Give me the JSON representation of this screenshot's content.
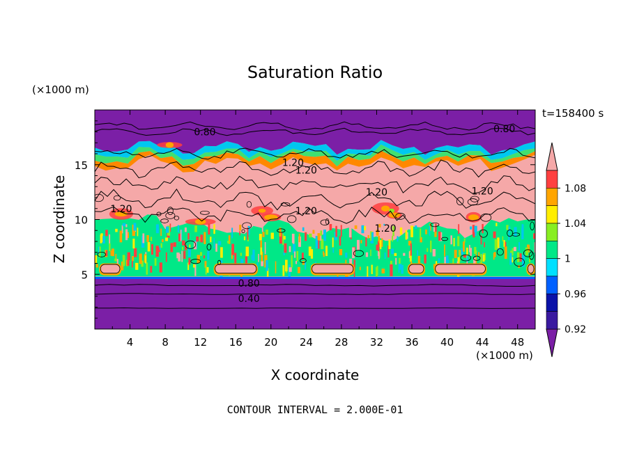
{
  "chart_data": {
    "type": "heatmap",
    "title": "Saturation Ratio",
    "xlabel": "X coordinate",
    "ylabel": "Z coordinate",
    "x_unit_label": "(×1000 m)",
    "y_unit_label": "(×1000 m)",
    "time_label": "t=158400 s",
    "footer": "CONTOUR INTERVAL = 2.000E-01",
    "xlim": [
      0,
      50
    ],
    "ylim": [
      0,
      20
    ],
    "x_ticks": [
      4,
      8,
      12,
      16,
      20,
      24,
      28,
      32,
      36,
      40,
      44,
      48
    ],
    "y_ticks": [
      5,
      10,
      15
    ],
    "colorbar": {
      "labels": [
        "1.08",
        "1.04",
        "1",
        "0.96",
        "0.92"
      ],
      "levels": [
        0.9,
        0.92,
        0.94,
        0.96,
        0.98,
        1.0,
        1.02,
        1.04,
        1.06,
        1.08,
        1.1
      ],
      "colors": [
        "#7b1fa6",
        "#3a1aa0",
        "#0a12a8",
        "#0060ff",
        "#00e0ff",
        "#00e887",
        "#88ee22",
        "#ffee00",
        "#ffa500",
        "#ff4040",
        "#f5a8a8"
      ]
    },
    "contour_labels": [
      {
        "text": "0.80",
        "x": 12.5,
        "z": 18.0
      },
      {
        "text": "0.80",
        "x": 46.5,
        "z": 18.3
      },
      {
        "text": "1.20",
        "x": 22.5,
        "z": 15.2
      },
      {
        "text": "1.20",
        "x": 24.0,
        "z": 14.5
      },
      {
        "text": "1.20",
        "x": 32.0,
        "z": 12.5
      },
      {
        "text": "1.20",
        "x": 44.0,
        "z": 12.6
      },
      {
        "text": "1.20",
        "x": 3.0,
        "z": 11.0
      },
      {
        "text": "1.20",
        "x": 24.0,
        "z": 10.8
      },
      {
        "text": "1.20",
        "x": 33.0,
        "z": 9.2
      },
      {
        "text": "0.80",
        "x": 17.5,
        "z": 4.2
      },
      {
        "text": "0.40",
        "x": 17.5,
        "z": 2.8
      }
    ]
  }
}
